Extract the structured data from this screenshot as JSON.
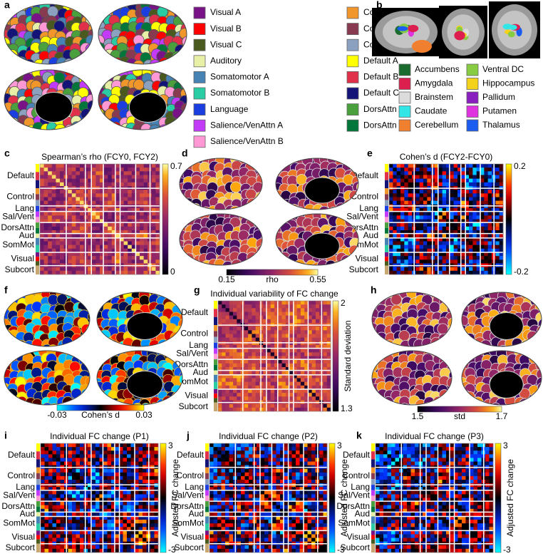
{
  "panels": {
    "a": {
      "label": "a",
      "legend": [
        {
          "name": "Visual A",
          "color": "#781286"
        },
        {
          "name": "Visual B",
          "color": "#ff0000"
        },
        {
          "name": "Visual C",
          "color": "#4a5a1e"
        },
        {
          "name": "Auditory",
          "color": "#e8f0a8"
        },
        {
          "name": "Somatomotor A",
          "color": "#4682b4"
        },
        {
          "name": "Somatomotor B",
          "color": "#2acca4"
        },
        {
          "name": "Language",
          "color": "#1a3ee0"
        },
        {
          "name": "Salience/VenAttn A",
          "color": "#c43afa"
        },
        {
          "name": "Salience/VenAttn B",
          "color": "#ff98d5"
        },
        {
          "name": "Control A",
          "color": "#f0962a"
        },
        {
          "name": "Control B",
          "color": "#873a50"
        },
        {
          "name": "Control C",
          "color": "#8ca0c0"
        },
        {
          "name": "Default A",
          "color": "#ffff00"
        },
        {
          "name": "Default B",
          "color": "#e0304a"
        },
        {
          "name": "Default C",
          "color": "#141478"
        },
        {
          "name": "DorsAttn A",
          "color": "#4aa03c"
        },
        {
          "name": "DorsAttn B",
          "color": "#00763a"
        }
      ]
    },
    "b": {
      "label": "b",
      "legend": [
        {
          "name": "Accumbens",
          "color": "#1a6b2e"
        },
        {
          "name": "Amygdala",
          "color": "#dc1f4e"
        },
        {
          "name": "Brainstem",
          "color": "#dcdcdc"
        },
        {
          "name": "Caudate",
          "color": "#33e6e6"
        },
        {
          "name": "Cerebellum",
          "color": "#f08030"
        },
        {
          "name": "Ventral DC",
          "color": "#88cc44"
        },
        {
          "name": "Hippocampus",
          "color": "#f5d21a"
        },
        {
          "name": "Pallidum",
          "color": "#8a1fbf"
        },
        {
          "name": "Putamen",
          "color": "#e033e0"
        },
        {
          "name": "Thalamus",
          "color": "#1a5cf0"
        }
      ]
    },
    "c": {
      "label": "c",
      "title": "Spearman’s rho (FCY0, FCY2)",
      "colorbar": [
        "0.7",
        "0"
      ]
    },
    "d": {
      "label": "d",
      "colorbar_label": "rho",
      "colorbar": [
        "0.15",
        "0.55"
      ]
    },
    "e": {
      "label": "e",
      "title": "Cohen’s d (FCY2-FCY0)",
      "colorbar": [
        "0.2",
        "-0.2"
      ]
    },
    "f": {
      "label": "f",
      "colorbar_label": "Cohen’s d",
      "colorbar": [
        "-0.03",
        "0.03"
      ]
    },
    "g": {
      "label": "g",
      "title": "Individual variability of FC change",
      "colorbar_label": "Standard deviation",
      "colorbar": [
        "2",
        "1.3"
      ]
    },
    "h": {
      "label": "h",
      "colorbar_label": "std",
      "colorbar": [
        "1.5",
        "1.7"
      ]
    },
    "i": {
      "label": "i",
      "title": "Individual FC change (P1)",
      "colorbar_label": "Adjusted FC change",
      "colorbar": [
        "3",
        "-3"
      ]
    },
    "j": {
      "label": "j",
      "title": "Individual FC change (P2)",
      "colorbar_label": "Adjusted FC change",
      "colorbar": [
        "3",
        "-3"
      ]
    },
    "k": {
      "label": "k",
      "title": "Individual FC change (P3)",
      "colorbar_label": "Adjusted FC change",
      "colorbar": [
        "3",
        "-3"
      ]
    }
  },
  "network_labels": [
    "Default",
    "Control",
    "Lang",
    "Sal/Vent",
    "DorsAttn",
    "Aud",
    "SomMot",
    "Visual",
    "Subcort"
  ]
}
